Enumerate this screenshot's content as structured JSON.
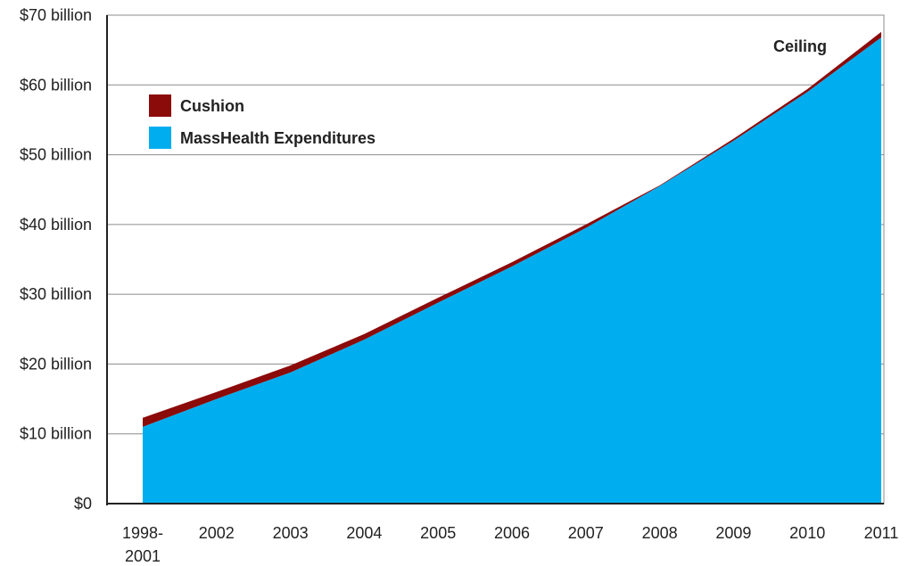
{
  "chart_data": {
    "type": "area",
    "stacked": true,
    "categories": [
      "1998-2001",
      "2002",
      "2003",
      "2004",
      "2005",
      "2006",
      "2007",
      "2008",
      "2009",
      "2010",
      "2011"
    ],
    "category_lines": [
      [
        "1998-",
        "2001"
      ],
      [
        "2002"
      ],
      [
        "2003"
      ],
      [
        "2004"
      ],
      [
        "2005"
      ],
      [
        "2006"
      ],
      [
        "2007"
      ],
      [
        "2008"
      ],
      [
        "2009"
      ],
      [
        "2010"
      ],
      [
        "2011"
      ]
    ],
    "series": [
      {
        "name": "MassHealth Expenditures",
        "color": "#00aeef",
        "values": [
          11.0,
          15.0,
          18.8,
          23.5,
          28.8,
          34.0,
          39.5,
          45.5,
          52.0,
          59.0,
          66.8
        ]
      },
      {
        "name": "Cushion",
        "color": "#8b0a0a",
        "values": [
          1.3,
          1.0,
          1.0,
          0.8,
          0.7,
          0.6,
          0.5,
          0.1,
          0.3,
          0.4,
          0.8
        ]
      }
    ],
    "ylim": [
      0,
      70
    ],
    "yticks": [
      0,
      10,
      20,
      30,
      40,
      50,
      60,
      70
    ],
    "ytick_labels": [
      "$0",
      "$10 billion",
      "$20 billion",
      "$30 billion",
      "$40 billion",
      "$50 billion",
      "$60 billion",
      "$70 billion"
    ],
    "grid": true,
    "legend": {
      "position": "top-left",
      "items": [
        {
          "label": "Cushion",
          "color": "#8b0a0a"
        },
        {
          "label": "MassHealth Expenditures",
          "color": "#00aeef"
        }
      ]
    },
    "annotations": [
      {
        "text": "Ceiling",
        "near": "2011"
      }
    ]
  }
}
